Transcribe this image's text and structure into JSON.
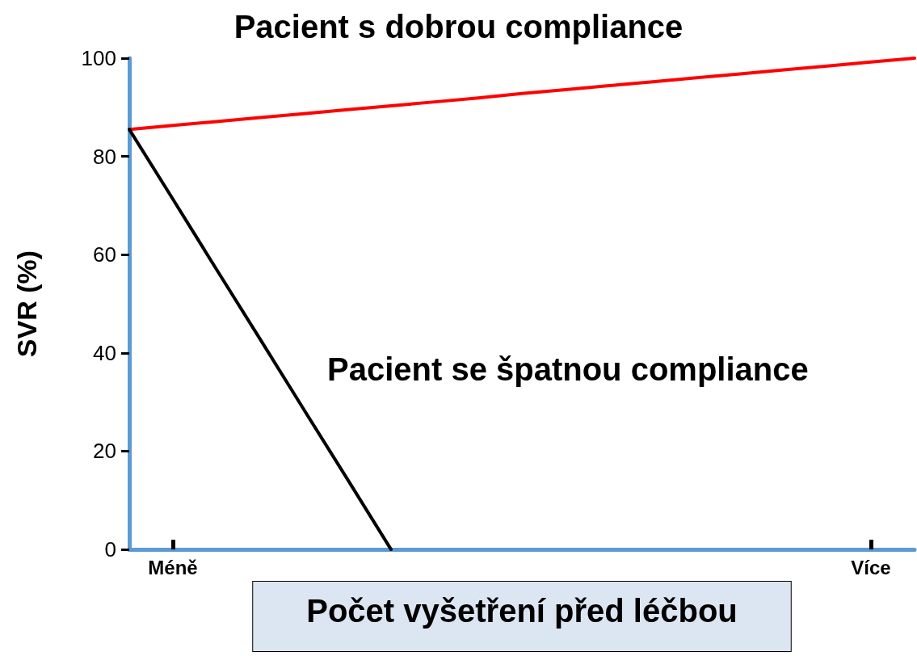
{
  "chart_data": {
    "type": "line",
    "title": "Pacient s dobrou compliance",
    "xlabel": "Počet vyšetření před léčbou",
    "ylabel": "SVR (%)",
    "annotations": [
      "Pacient se špatnou compliance"
    ],
    "series": [
      {
        "color": "#ff0000",
        "values": [
          85.5,
          86.3,
          87.1,
          87.9,
          88.7,
          89.5,
          90.3,
          91.1,
          91.9,
          92.8,
          93.6,
          94.4,
          95.2,
          96,
          96.8,
          97.6,
          98.4,
          99.2,
          100
        ]
      },
      {
        "color": "#000000",
        "values": [
          85.5,
          71.3,
          57,
          42.8,
          28.5,
          14.3,
          0,
          null,
          null,
          null,
          null,
          null,
          null,
          null,
          null,
          null,
          null,
          null,
          null
        ]
      }
    ],
    "categories": [
      null,
      "Méně",
      null,
      null,
      null,
      null,
      null,
      null,
      null,
      null,
      null,
      null,
      null,
      null,
      null,
      null,
      null,
      "Více",
      null
    ],
    "ylim": [
      0,
      100
    ],
    "yticks": [
      0,
      20,
      40,
      60,
      80,
      100
    ],
    "grid": false,
    "marker": "none",
    "line_style": "solid"
  }
}
